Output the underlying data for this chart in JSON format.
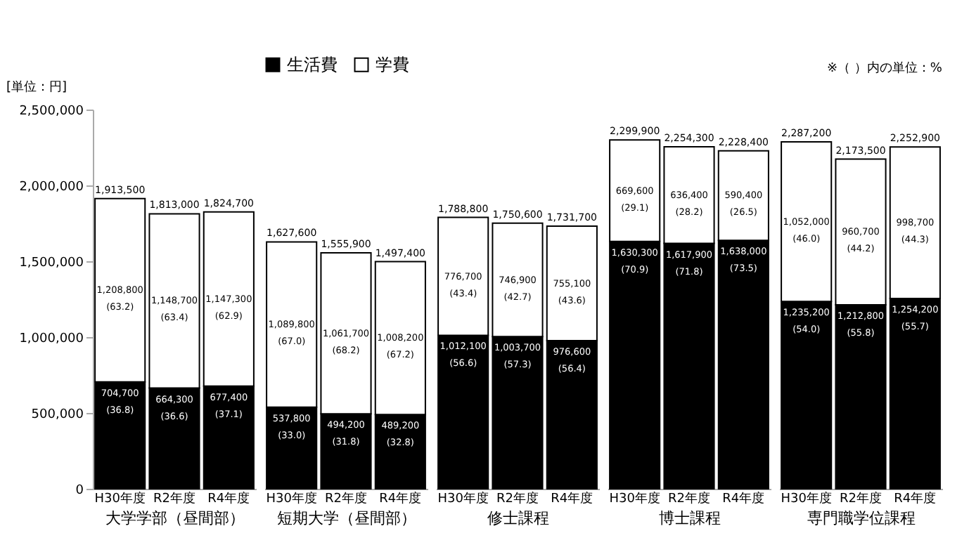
{
  "chart_data": [
    {
      "type": "bar",
      "stacked": true,
      "ylabel": "[単位：円]",
      "xlabel": "大学学部（昼間部）",
      "categories": [
        "H30年度",
        "R2年度",
        "R4年度"
      ],
      "ylim": [
        0,
        2500000
      ],
      "yticks": [
        {
          "value": 0,
          "label": "0"
        },
        {
          "value": 500000,
          "label": "500,000"
        },
        {
          "value": 1000000,
          "label": "1,000,000"
        },
        {
          "value": 1500000,
          "label": "1,500,000"
        },
        {
          "value": 2000000,
          "label": "2,000,000"
        },
        {
          "value": 2500000,
          "label": "2,500,000"
        }
      ],
      "series": [
        {
          "color": "#000000",
          "values": [
            704700,
            664300,
            677400
          ],
          "value_labels": [
            "704,700 (36.8)",
            "664,300 (36.6)",
            "677,400 (37.1)"
          ]
        },
        {
          "color": "#ffffff",
          "values": [
            1208800,
            1148700,
            1147300
          ],
          "value_labels": [
            "1,208,800 (63.2)",
            "1,148,700 (63.4)",
            "1,147,300 (62.9)"
          ]
        }
      ],
      "totals": [
        "1,913,500",
        "1,813,000",
        "1,824,700"
      ]
    },
    {
      "type": "bar",
      "stacked": true,
      "xlabel": "短期大学（昼間部）",
      "categories": [
        "H30年度",
        "R2年度",
        "R4年度"
      ],
      "ylim": [
        0,
        2500000
      ],
      "tick_labels": "x",
      "legend": "top",
      "series": [
        {
          "name": "生活費",
          "color": "#000000",
          "values": [
            537800,
            494200,
            489200
          ],
          "value_labels": [
            "537,800 (33.0)",
            "494,200 (31.8)",
            "489,200 (32.8)"
          ]
        },
        {
          "name": "学費",
          "color": "#ffffff",
          "values": [
            1089800,
            1061700,
            1008200
          ],
          "value_labels": [
            "1,089,800 (67.0)",
            "1,061,700 (68.2)",
            "1,008,200 (67.2)"
          ]
        }
      ],
      "totals": [
        "1,627,600",
        "1,555,900",
        "1,497,400"
      ]
    },
    {
      "type": "bar",
      "stacked": true,
      "xlabel": "修士課程",
      "categories": [
        "H30年度",
        "R2年度",
        "R4年度"
      ],
      "ylim": [
        0,
        2500000
      ],
      "tick_labels": "x",
      "series": [
        {
          "color": "#000000",
          "values": [
            1012100,
            1003700,
            976600
          ],
          "value_labels": [
            "1,012,100 (56.6)",
            "1,003,700 (57.3)",
            "976,600 (56.4)"
          ]
        },
        {
          "color": "#ffffff",
          "values": [
            776700,
            746900,
            755100
          ],
          "value_labels": [
            "776,700 (43.4)",
            "746,900 (42.7)",
            "755,100 (43.6)"
          ]
        }
      ],
      "totals": [
        "1,788,800",
        "1,750,600",
        "1,731,700"
      ]
    },
    {
      "type": "bar",
      "stacked": true,
      "xlabel": "博士課程",
      "categories": [
        "H30年度",
        "R2年度",
        "R4年度"
      ],
      "ylim": [
        0,
        2500000
      ],
      "tick_labels": "x",
      "series": [
        {
          "color": "#000000",
          "values": [
            1630300,
            1617900,
            1638000
          ],
          "value_labels": [
            "1,630,300 (70.9)",
            "1,617,900 (71.8)",
            "1,638,000 (73.5)"
          ]
        },
        {
          "color": "#ffffff",
          "values": [
            669600,
            636400,
            590400
          ],
          "value_labels": [
            "669,600 (29.1)",
            "636,400 (28.2)",
            "590,400 (26.5)"
          ]
        }
      ],
      "totals": [
        "2,299,900",
        "2,254,300",
        "2,228,400"
      ]
    },
    {
      "type": "bar",
      "stacked": true,
      "xlabel": "専門職学位課程",
      "categories": [
        "H30年度",
        "R2年度",
        "R4年度"
      ],
      "ylim": [
        0,
        2500000
      ],
      "tick_labels": "x",
      "annotations": [
        "※（ ）内の単位：%"
      ],
      "series": [
        {
          "color": "#000000",
          "values": [
            1235200,
            1212800,
            1254200
          ],
          "value_labels": [
            "1,235,200 (54.0)",
            "1,212,800 (55.8)",
            "1,254,200 (55.7)"
          ]
        },
        {
          "color": "#ffffff",
          "values": [
            1052000,
            960700,
            998700
          ],
          "value_labels": [
            "1,052,000 (46.0)",
            "960,700 (44.2)",
            "998,700 (44.3)"
          ]
        }
      ],
      "totals": [
        "2,287,200",
        "2,173,500",
        "2,252,900"
      ]
    }
  ]
}
